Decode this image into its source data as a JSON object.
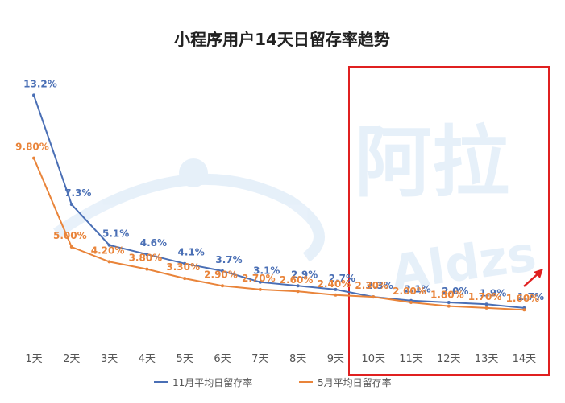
{
  "chart_data": {
    "type": "line",
    "title": "小程序用户14天日留存率趋势",
    "categories": [
      "1天",
      "2天",
      "3天",
      "4天",
      "5天",
      "6天",
      "7天",
      "8天",
      "9天",
      "10天",
      "11天",
      "12天",
      "13天",
      "14天"
    ],
    "series": [
      {
        "name": "11月平均日留存率",
        "color": "#4a6fb5",
        "values": [
          13.2,
          7.3,
          5.1,
          4.6,
          4.1,
          3.7,
          3.1,
          2.9,
          2.7,
          2.3,
          2.1,
          2.0,
          1.9,
          1.7
        ],
        "labels": [
          "13.2%",
          "7.3%",
          "5.1%",
          "4.6%",
          "4.1%",
          "3.7%",
          "3.1%",
          "2.9%",
          "2.7%",
          "2.3%",
          "2.1%",
          "2.0%",
          "1.9%",
          "1.7%"
        ]
      },
      {
        "name": "5月平均日留存率",
        "color": "#e9843a",
        "values": [
          9.8,
          5.0,
          4.2,
          3.8,
          3.3,
          2.9,
          2.7,
          2.6,
          2.4,
          2.3,
          2.0,
          1.8,
          1.7,
          1.6
        ],
        "labels": [
          "9.80%",
          "5.00%",
          "4.20%",
          "3.80%",
          "3.30%",
          "2.90%",
          "2.70%",
          "2.60%",
          "2.40%",
          "2.30%",
          "2.00%",
          "1.80%",
          "1.70%",
          "1.60%"
        ]
      }
    ],
    "ylim": [
      0,
      14
    ],
    "grid": false,
    "legend_position": "bottom",
    "highlight": {
      "from": "10天",
      "to": "14天",
      "color": "#e02020"
    },
    "watermark": {
      "text_cn": "阿拉",
      "text_en": "Aldzs"
    },
    "arrow_color": "#e02020"
  }
}
